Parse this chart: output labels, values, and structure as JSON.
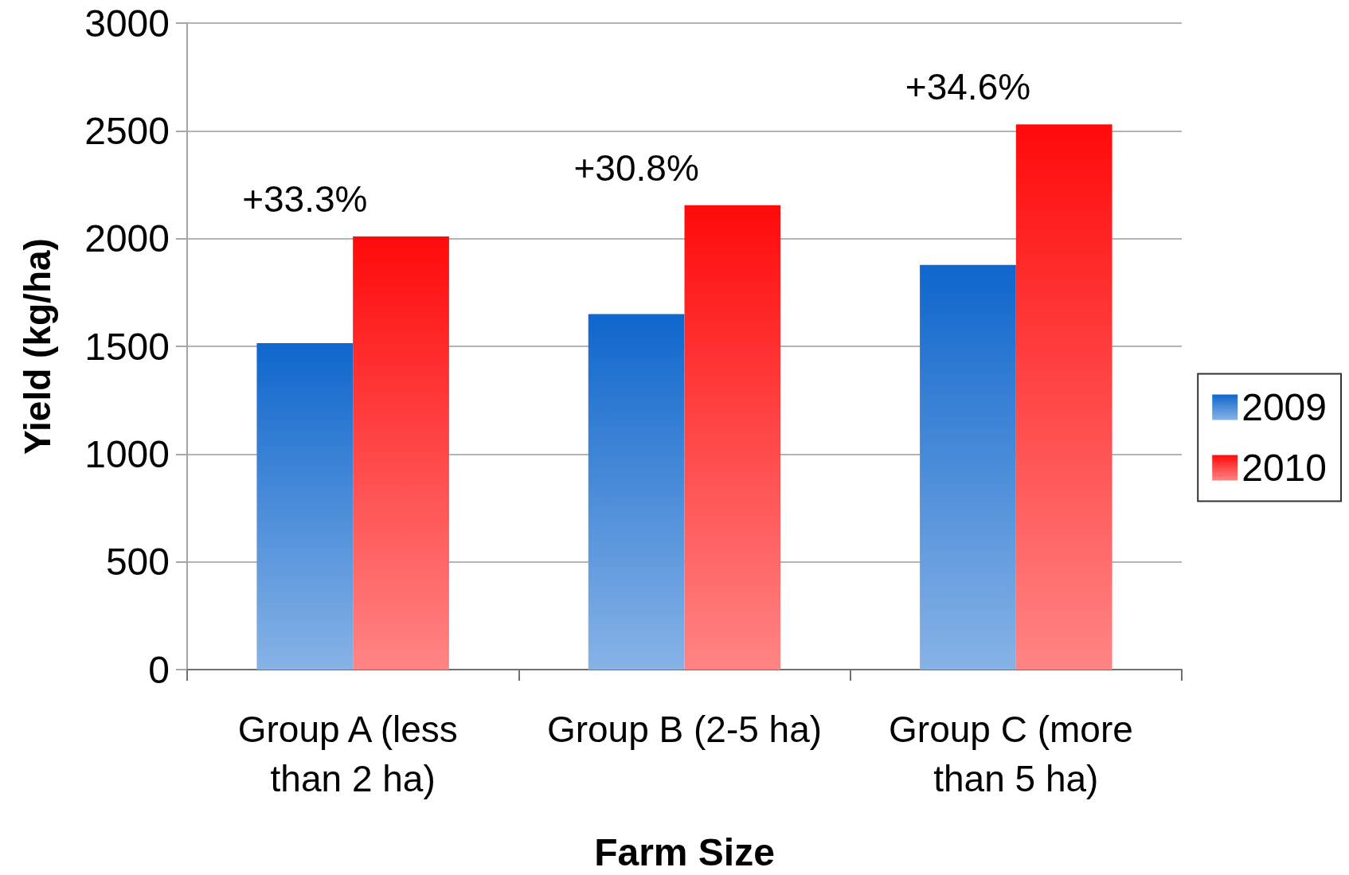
{
  "chart_data": {
    "type": "bar",
    "xlabel": "Farm Size",
    "ylabel": "Yield (kg/ha)",
    "categories": [
      "Group A (less than 2 ha)",
      "Group B (2-5 ha)",
      "Group C (more than 5 ha)"
    ],
    "series": [
      {
        "name": "2009",
        "color": "#0f66cc",
        "values": [
          1515,
          1650,
          1878
        ]
      },
      {
        "name": "2010",
        "color": "#ff0a0a",
        "values": [
          2010,
          2155,
          2530
        ]
      }
    ],
    "ylim": [
      0,
      3000
    ],
    "yticks": [
      0,
      500,
      1000,
      1500,
      2000,
      2500,
      3000
    ],
    "grid": "y",
    "legend": "right",
    "annotations": [
      {
        "text": "+33.3%",
        "x": "Group A (less than 2 ha)",
        "y": 2010
      },
      {
        "text": "+30.8%",
        "x": "Group B (2-5 ha)",
        "y": 2155
      },
      {
        "text": "+34.6%",
        "x": "Group C (more than 5 ha)",
        "y": 2530
      }
    ]
  }
}
